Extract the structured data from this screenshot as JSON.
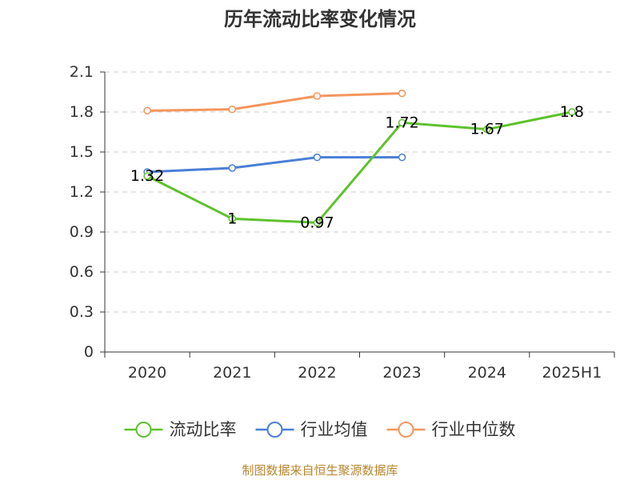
{
  "chart_data": {
    "type": "line",
    "title": "历年流动比率变化情况",
    "categories": [
      "2020",
      "2021",
      "2022",
      "2023",
      "2024",
      "2025H1"
    ],
    "ylim": [
      0,
      2.1
    ],
    "yticks": [
      "0",
      "0.3",
      "0.6",
      "0.9",
      "1.2",
      "1.5",
      "1.8",
      "2.1"
    ],
    "grid": true,
    "legend_position": "bottom",
    "series": [
      {
        "name": "流动比率",
        "color": "#5ec22c",
        "values": [
          1.32,
          1,
          0.97,
          1.72,
          1.67,
          1.8
        ],
        "labels": [
          "1.32",
          "1",
          "0.97",
          "1.72",
          "1.67",
          "1.8"
        ]
      },
      {
        "name": "行业均值",
        "color": "#4a7fd6",
        "values": [
          1.35,
          1.38,
          1.46,
          1.46,
          null,
          null
        ]
      },
      {
        "name": "行业中位数",
        "color": "#f4955c",
        "values": [
          1.81,
          1.82,
          1.92,
          1.94,
          null,
          null
        ]
      }
    ]
  },
  "footer": {
    "source": "制图数据来自恒生聚源数据库"
  }
}
